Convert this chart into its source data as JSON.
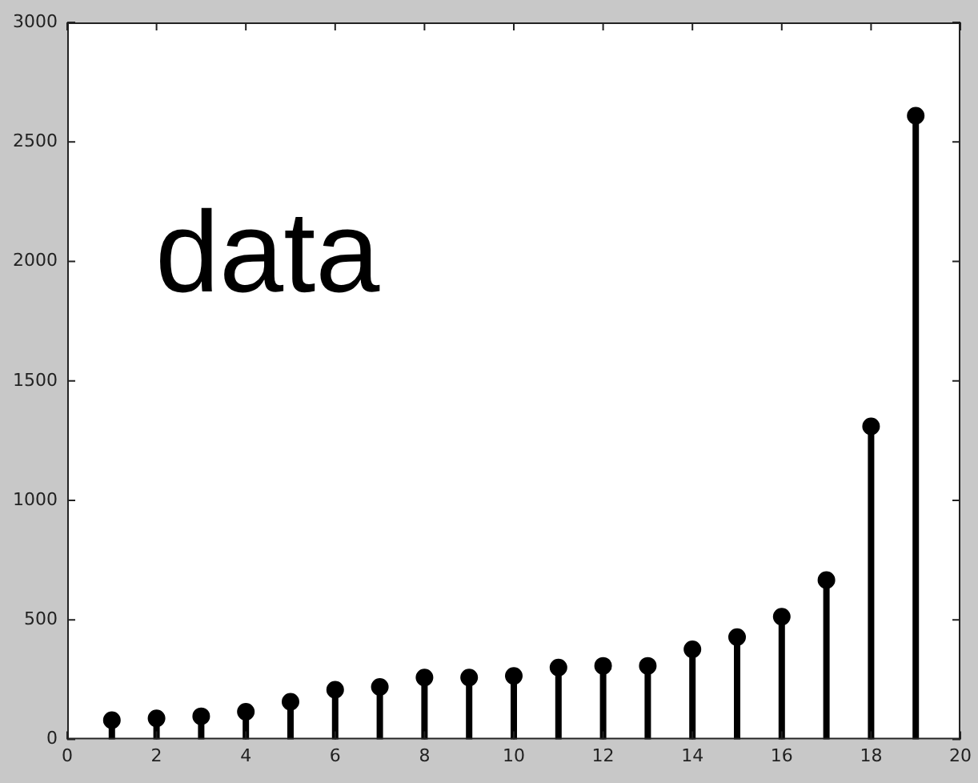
{
  "chart_data": {
    "type": "lollipop",
    "annotations": [
      "data"
    ],
    "x": [
      1,
      2,
      3,
      4,
      5,
      6,
      7,
      8,
      9,
      10,
      11,
      12,
      13,
      14,
      15,
      16,
      17,
      18,
      19
    ],
    "series": [
      {
        "color": "#000000",
        "values": [
          81,
          88,
          97,
          116,
          158,
          208,
          220,
          259,
          259,
          266,
          301,
          308,
          308,
          377,
          428,
          514,
          667,
          1310,
          2610
        ]
      }
    ],
    "xlim": [
      0,
      20
    ],
    "xticks": [
      0,
      2,
      4,
      6,
      8,
      10,
      12,
      14,
      16,
      18,
      20
    ],
    "ylim": [
      0,
      3000
    ],
    "yticks": [
      0,
      500,
      1000,
      1500,
      2000,
      2500,
      3000
    ],
    "grid": false,
    "legend": false,
    "marker": "circle"
  }
}
